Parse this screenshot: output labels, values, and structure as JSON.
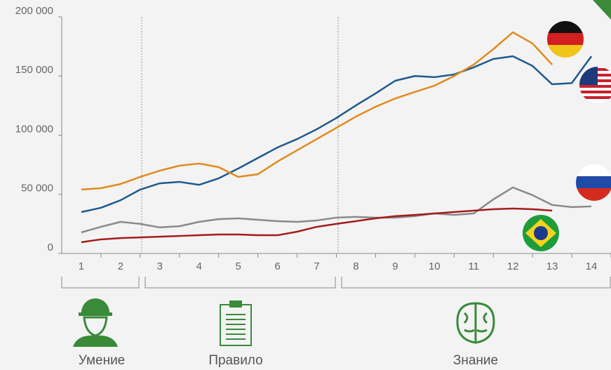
{
  "chart_data": {
    "type": "line",
    "x": [
      1,
      1.5,
      2,
      2.5,
      3,
      3.5,
      4,
      4.5,
      5,
      5.5,
      6,
      6.5,
      7,
      7.5,
      8,
      8.5,
      9,
      9.5,
      10,
      10.5,
      11,
      11.5,
      12,
      12.5,
      13,
      13.5,
      14
    ],
    "series": [
      {
        "color": "#1f5a8e",
        "values": [
          35000,
          38600,
          45000,
          54000,
          59300,
          60500,
          58000,
          63500,
          71800,
          80700,
          89600,
          96700,
          105000,
          114500,
          125200,
          135300,
          146000,
          150000,
          149000,
          151300,
          157300,
          164400,
          166700,
          158500,
          143000,
          144000,
          166700
        ]
      },
      {
        "color": "#e08a1e",
        "values": [
          54000,
          55200,
          58700,
          64700,
          70000,
          74200,
          76000,
          73000,
          64700,
          67000,
          77700,
          87200,
          96700,
          106200,
          115700,
          124000,
          131000,
          136500,
          141800,
          150000,
          159600,
          172700,
          187000,
          177500,
          159600,
          null,
          null
        ]
      },
      {
        "color": "#8a8a8a",
        "values": [
          17800,
          22500,
          26700,
          25000,
          22000,
          23000,
          26700,
          29000,
          29700,
          28500,
          27300,
          26700,
          27900,
          30300,
          30900,
          30300,
          30300,
          31500,
          33800,
          32600,
          33800,
          45700,
          55800,
          49300,
          41000,
          39200,
          39800
        ]
      },
      {
        "color": "#a31c1c",
        "values": [
          9500,
          11900,
          13000,
          13600,
          14200,
          14800,
          15400,
          16000,
          16000,
          15400,
          15400,
          18400,
          22500,
          25000,
          27300,
          29700,
          31500,
          32600,
          33800,
          35000,
          36200,
          37400,
          38000,
          37400,
          36200,
          null,
          null
        ]
      }
    ],
    "xlim": [
      0.5,
      14.5
    ],
    "xticks": [
      1,
      2,
      3,
      4,
      5,
      6,
      7,
      8,
      9,
      10,
      11,
      12,
      13,
      14
    ],
    "ylim": [
      0,
      200000
    ],
    "yticks": [
      0,
      {
        "value": 50000,
        "label": "50 000"
      },
      {
        "value": 100000,
        "label": "100 000"
      },
      {
        "value": 150000,
        "label": "150 000"
      },
      {
        "value": 200000,
        "label": "200 000"
      }
    ],
    "annotations": [
      "Умение",
      "Правило",
      "Знание"
    ]
  }
}
